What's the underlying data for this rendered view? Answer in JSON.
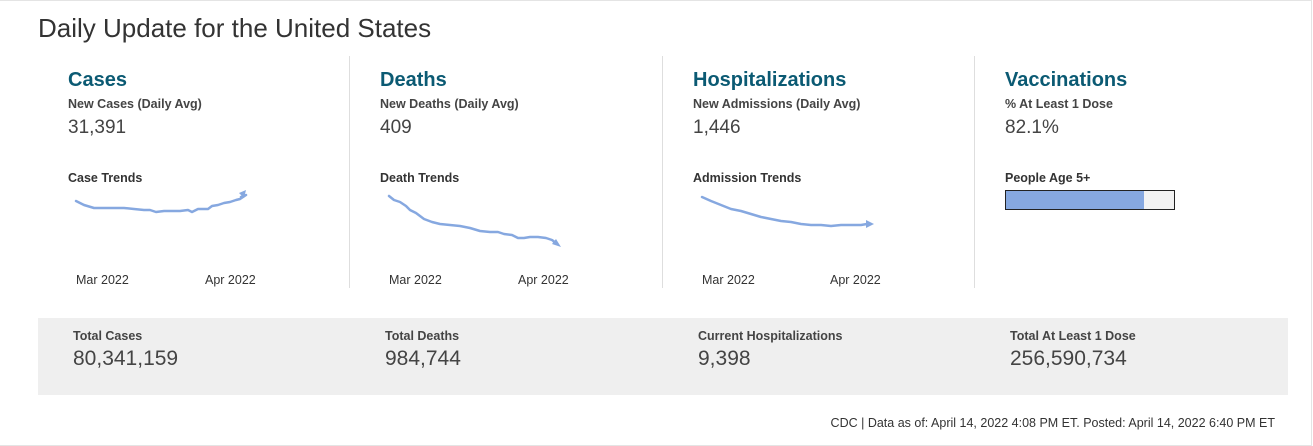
{
  "page": {
    "title": "Daily Update for the United States",
    "footer": "CDC | Data as of: April 14, 2022 4:08 PM ET. Posted: April 14, 2022 6:40 PM ET"
  },
  "colors": {
    "heading": "#0b5a73",
    "trend_line": "#86a8e0",
    "totals_background": "#efefef"
  },
  "metrics": [
    {
      "title": "Cases",
      "sub_label": "New Cases (Daily Avg)",
      "value": "31,391",
      "trend_label": "Case Trends",
      "axis_start": "Mar 2022",
      "axis_end": "Apr 2022"
    },
    {
      "title": "Deaths",
      "sub_label": "New Deaths (Daily Avg)",
      "value": "409",
      "trend_label": "Death Trends",
      "axis_start": "Mar 2022",
      "axis_end": "Apr 2022"
    },
    {
      "title": "Hospitalizations",
      "sub_label": "New Admissions (Daily Avg)",
      "value": "1,446",
      "trend_label": "Admission Trends",
      "axis_start": "Mar 2022",
      "axis_end": "Apr 2022"
    },
    {
      "title": "Vaccinations",
      "sub_label": "% At Least 1 Dose",
      "value": "82.1%",
      "bar_label": "People Age 5+",
      "bar_fraction": 0.821
    }
  ],
  "totals": [
    {
      "label": "Total Cases",
      "value": "80,341,159"
    },
    {
      "label": "Total Deaths",
      "value": "984,744"
    },
    {
      "label": "Current Hospitalizations",
      "value": "9,398"
    },
    {
      "label": "Total At Least 1 Dose",
      "value": "256,590,734"
    }
  ]
}
